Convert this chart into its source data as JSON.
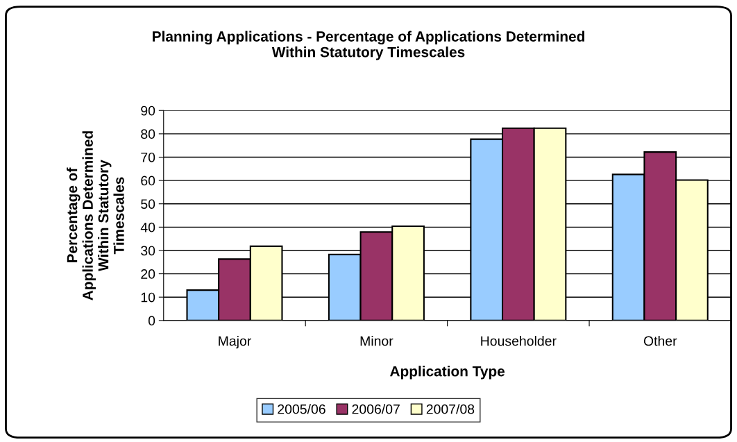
{
  "chart_data": {
    "type": "bar",
    "title": "Planning Applications - Percentage of Applications Determined\nWithin Statutory Timescales",
    "xlabel": "Application Type",
    "ylabel": "Percentage of\nApplications Determined\nWithin Statutory\nTimescales",
    "categories": [
      "Major",
      "Minor",
      "Householder",
      "Other"
    ],
    "series": [
      {
        "name": "2005/06",
        "color": "#99ccff",
        "values": [
          13.0,
          28.3,
          77.7,
          62.6
        ]
      },
      {
        "name": "2006/07",
        "color": "#993366",
        "values": [
          26.3,
          37.9,
          82.4,
          72.2
        ]
      },
      {
        "name": "2007/08",
        "color": "#ffffcc",
        "values": [
          31.8,
          40.4,
          82.4,
          60.2
        ]
      }
    ],
    "ylim": [
      0,
      90
    ],
    "yticks": [
      0,
      10,
      20,
      30,
      40,
      50,
      60,
      70,
      80,
      90
    ],
    "grid": "y",
    "legend": "bottom"
  }
}
